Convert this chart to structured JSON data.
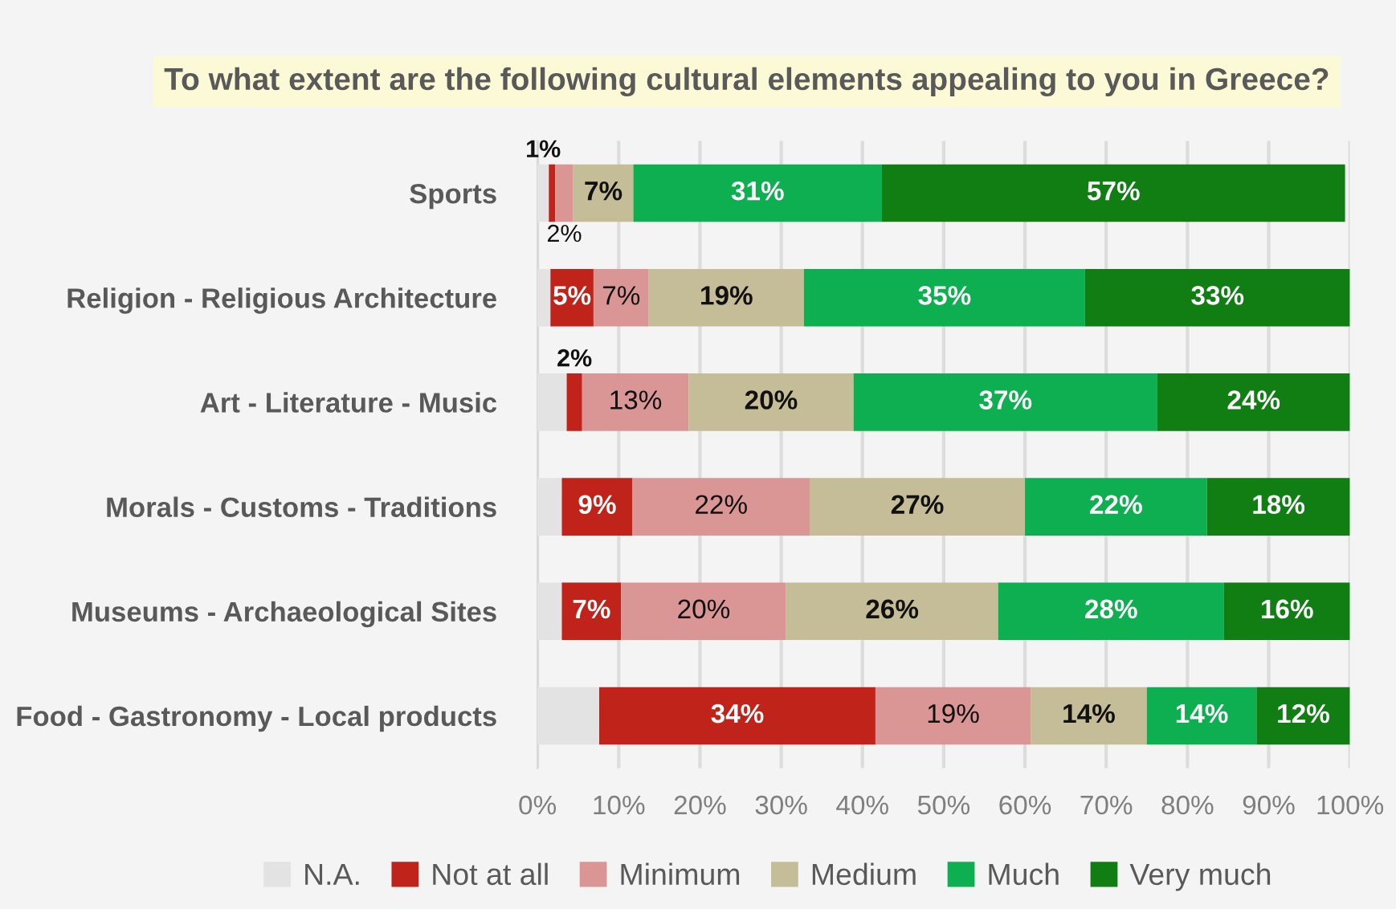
{
  "chart_data": {
    "type": "bar",
    "orientation": "horizontal",
    "stacked": true,
    "title": "To what extent are the following cultural elements appealing to you in Greece?",
    "categories": [
      "Sports",
      "Religion - Religious Architecture",
      "Art - Literature - Music",
      "Morals - Customs - Traditions",
      "Museums - Archaeological Sites",
      "Food - Gastronomy - Local products"
    ],
    "series": [
      {
        "name": "N.A.",
        "color": "#e3e3e3",
        "values": [
          1.4,
          1.6,
          3.6,
          3.0,
          3.0,
          7.6
        ],
        "value_labels": [
          "1%",
          null,
          null,
          null,
          null,
          null
        ]
      },
      {
        "name": "Not at all",
        "color": "#c0231a",
        "values": [
          0.8,
          5.3,
          1.9,
          8.7,
          7.3,
          34.0
        ],
        "value_labels": [
          null,
          "5%",
          "2%",
          "9%",
          "7%",
          "34%"
        ]
      },
      {
        "name": "Minimum",
        "color": "#da9694",
        "values": [
          2.2,
          6.8,
          13.1,
          21.8,
          20.3,
          19.1
        ],
        "value_labels": [
          "2%",
          "7%",
          "13%",
          "22%",
          "20%",
          "19%"
        ]
      },
      {
        "name": "Medium",
        "color": "#c4bd97",
        "values": [
          7.4,
          19.1,
          20.3,
          26.5,
          26.1,
          14.3
        ],
        "value_labels": [
          "7%",
          "19%",
          "20%",
          "27%",
          "26%",
          "14%"
        ]
      },
      {
        "name": "Much",
        "color": "#0daf50",
        "values": [
          30.6,
          34.6,
          37.4,
          22.4,
          27.8,
          13.5
        ],
        "value_labels": [
          "31%",
          "35%",
          "37%",
          "22%",
          "28%",
          "14%"
        ]
      },
      {
        "name": "Very much",
        "color": "#107e12",
        "values": [
          57.0,
          32.6,
          23.7,
          17.6,
          15.5,
          11.5
        ],
        "value_labels": [
          "57%",
          "33%",
          "24%",
          "18%",
          "16%",
          "12%"
        ]
      }
    ],
    "xlim": [
      0,
      100
    ],
    "xticks": [
      {
        "value": 0,
        "label": "0%"
      },
      {
        "value": 10,
        "label": "10%"
      },
      {
        "value": 20,
        "label": "20%"
      },
      {
        "value": 30,
        "label": "30%"
      },
      {
        "value": 40,
        "label": "40%"
      },
      {
        "value": 50,
        "label": "50%"
      },
      {
        "value": 60,
        "label": "60%"
      },
      {
        "value": 70,
        "label": "70%"
      },
      {
        "value": 80,
        "label": "80%"
      },
      {
        "value": 90,
        "label": "90%"
      },
      {
        "value": 100,
        "label": "100%"
      }
    ],
    "grid": "x",
    "legend": "bottom"
  }
}
